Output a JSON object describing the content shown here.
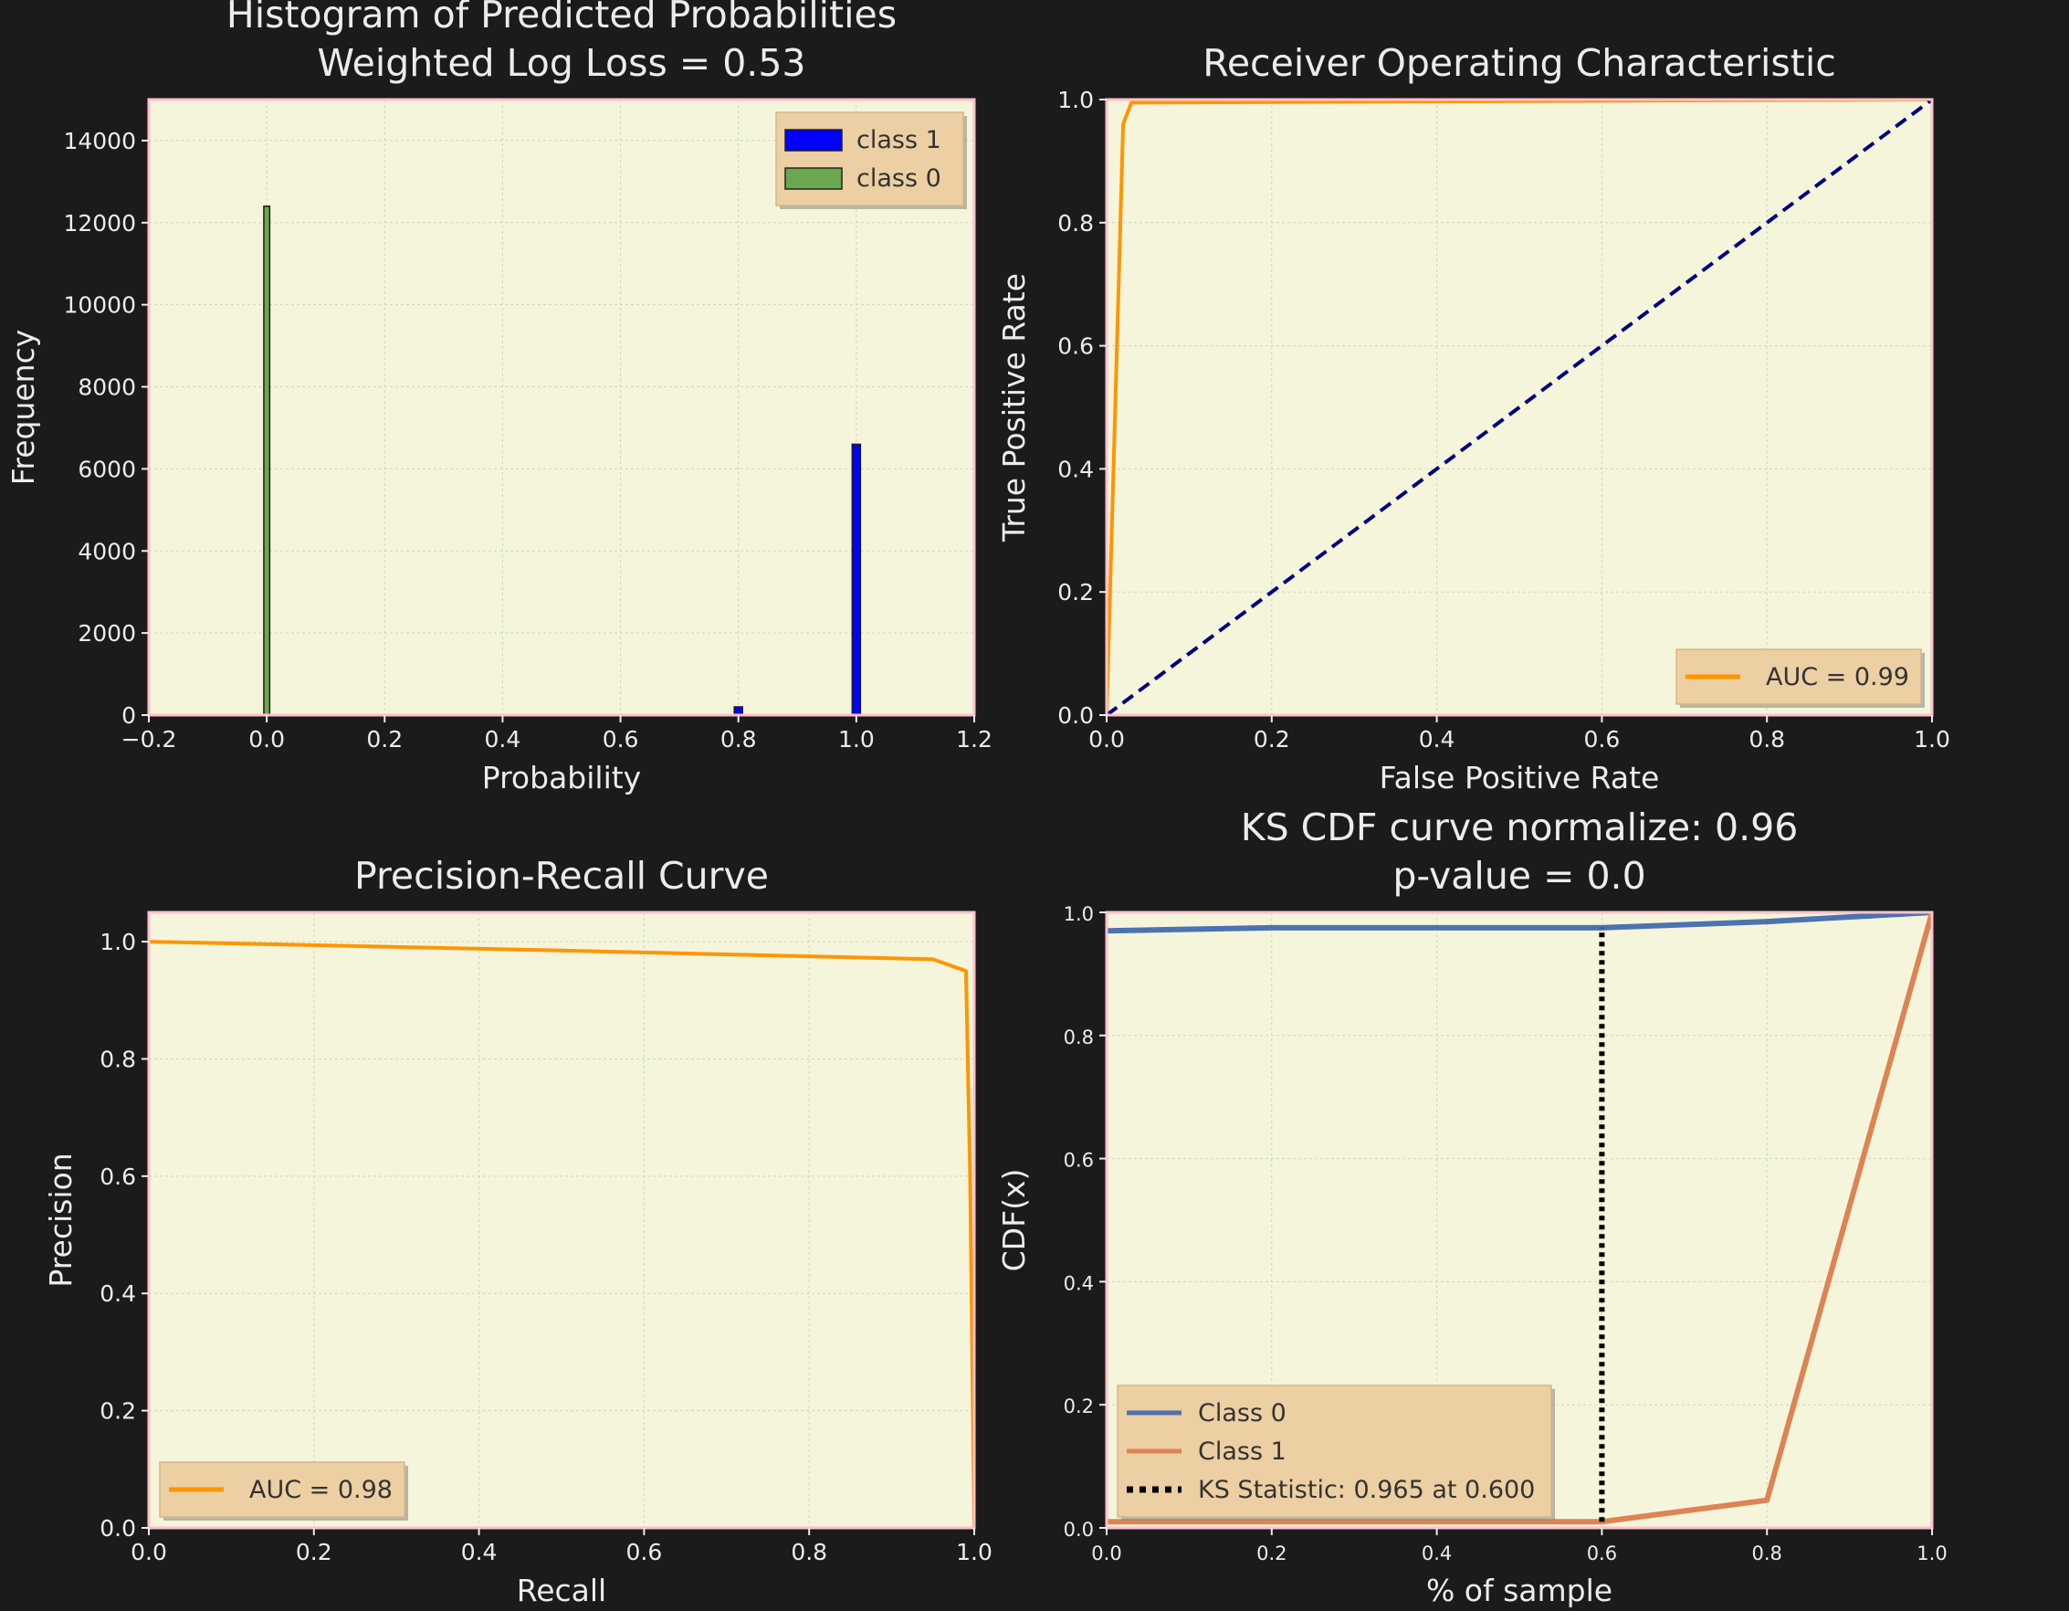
{
  "chart_data": [
    {
      "id": "hist",
      "type": "bar",
      "title_lines": [
        "Histogram of Predicted Probabilities",
        "Weighted Log Loss = 0.53"
      ],
      "xlabel": "Probability",
      "ylabel": "Frequency",
      "xlim": [
        -0.2,
        1.2
      ],
      "ylim": [
        0,
        15000
      ],
      "xticks": [
        "−0.2",
        "0.0",
        "0.2",
        "0.4",
        "0.6",
        "0.8",
        "1.0",
        "1.2"
      ],
      "yticks": [
        "0",
        "2000",
        "4000",
        "6000",
        "8000",
        "10000",
        "12000",
        "14000"
      ],
      "grid": true,
      "legend_placement": "top-right",
      "series": [
        {
          "name": "class 1",
          "color": "#0000ff",
          "bars": [
            {
              "x": 0.8,
              "width": 0.014,
              "value": 200
            },
            {
              "x": 1.0,
              "width": 0.014,
              "value": 6600
            }
          ]
        },
        {
          "name": "class 0",
          "color": "#6aa84f",
          "bars": [
            {
              "x": 0.0,
              "width": 0.01,
              "value": 12400
            }
          ]
        }
      ]
    },
    {
      "id": "roc",
      "type": "line",
      "title_lines": [
        "Receiver Operating Characteristic"
      ],
      "xlabel": "False Positive Rate",
      "ylabel": "True Positive Rate",
      "xlim": [
        0,
        1
      ],
      "ylim": [
        0,
        1
      ],
      "xticks": [
        "0.0",
        "0.2",
        "0.4",
        "0.6",
        "0.8",
        "1.0"
      ],
      "yticks": [
        "0.0",
        "0.2",
        "0.4",
        "0.6",
        "0.8",
        "1.0"
      ],
      "grid": true,
      "legend_placement": "bottom-right",
      "series": [
        {
          "name": "AUC = 0.99",
          "color": "#ff9500",
          "dash": "solid",
          "x": [
            0,
            0.02,
            0.03,
            1.0
          ],
          "y": [
            0,
            0.96,
            0.995,
            1.0
          ]
        },
        {
          "name": "",
          "color": "#000080",
          "dash": "dashed",
          "x": [
            0,
            1
          ],
          "y": [
            0,
            1
          ]
        }
      ]
    },
    {
      "id": "pr",
      "type": "line",
      "title_lines": [
        "Precision-Recall Curve"
      ],
      "xlabel": "Recall",
      "ylabel": "Precision",
      "xlim": [
        0,
        1
      ],
      "ylim": [
        0,
        1.05
      ],
      "xticks": [
        "0.0",
        "0.2",
        "0.4",
        "0.6",
        "0.8",
        "1.0"
      ],
      "yticks": [
        "0.0",
        "0.2",
        "0.4",
        "0.6",
        "0.8",
        "1.0"
      ],
      "grid": true,
      "legend_placement": "bottom-left",
      "series": [
        {
          "name": "AUC = 0.98",
          "color": "#ff9500",
          "dash": "solid",
          "x": [
            0,
            0.5,
            0.95,
            0.99,
            0.995,
            1.0
          ],
          "y": [
            1.0,
            0.985,
            0.97,
            0.95,
            0.6,
            0.0
          ]
        }
      ]
    },
    {
      "id": "ks",
      "type": "line",
      "title_lines": [
        "KS CDF curve normalize: 0.96",
        "p-value = 0.0"
      ],
      "xlabel": "% of sample",
      "ylabel": "CDF(x)",
      "xlim": [
        0,
        1
      ],
      "ylim": [
        0,
        1
      ],
      "xticks": [
        "0.0",
        "0.2",
        "0.4",
        "0.6",
        "0.8",
        "1.0"
      ],
      "yticks": [
        "0.0",
        "0.2",
        "0.4",
        "0.6",
        "0.8",
        "1.0"
      ],
      "grid": true,
      "legend_placement": "bottom-left",
      "series": [
        {
          "name": "Class 0",
          "color": "#4c72b0",
          "dash": "solid",
          "x": [
            0,
            0.2,
            0.4,
            0.6,
            0.8,
            1.0
          ],
          "y": [
            0.97,
            0.975,
            0.975,
            0.975,
            0.985,
            1.0
          ]
        },
        {
          "name": "Class 1",
          "color": "#dd8452",
          "dash": "solid",
          "x": [
            0,
            0.2,
            0.4,
            0.6,
            0.8,
            1.0
          ],
          "y": [
            0.01,
            0.01,
            0.01,
            0.01,
            0.045,
            1.0
          ]
        },
        {
          "name": "KS Statistic: 0.965 at 0.600",
          "color": "#000000",
          "dash": "dotted",
          "x": [
            0.6,
            0.6
          ],
          "y": [
            0.01,
            0.975
          ]
        }
      ]
    }
  ]
}
